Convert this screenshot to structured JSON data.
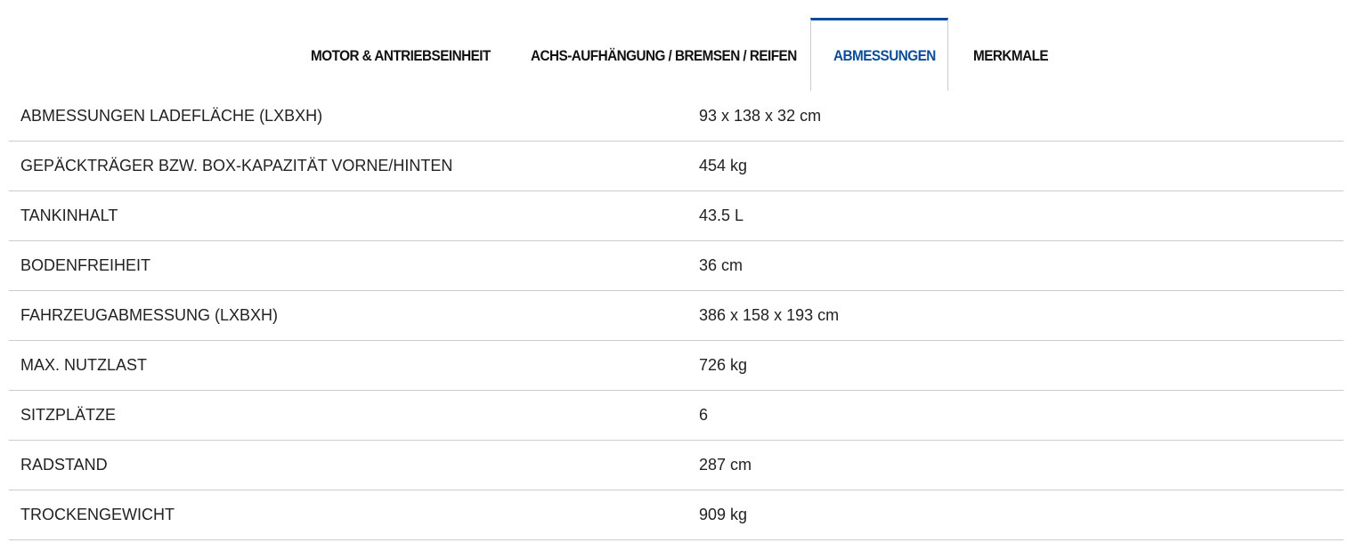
{
  "tabs": [
    {
      "label": "MOTOR & ANTRIEBSEINHEIT",
      "active": false
    },
    {
      "label": "ACHS-AUFHÄNGUNG / BREMSEN / REIFEN",
      "active": false
    },
    {
      "label": "ABMESSUNGEN",
      "active": true
    },
    {
      "label": "MERKMALE",
      "active": false
    }
  ],
  "accent_color": "#0b4c9a",
  "specs": [
    {
      "label": "ABMESSUNGEN LADEFLÄCHE (LXBXH)",
      "value": "93 x 138 x 32 cm"
    },
    {
      "label": "GEPÄCKTRÄGER BZW. BOX-KAPAZITÄT VORNE/HINTEN",
      "value": "454 kg"
    },
    {
      "label": "TANKINHALT",
      "value": "43.5 L"
    },
    {
      "label": "BODENFREIHEIT",
      "value": "36 cm"
    },
    {
      "label": "FAHRZEUGABMESSUNG (LXBXH)",
      "value": "386 x 158 x 193 cm"
    },
    {
      "label": "MAX. NUTZLAST",
      "value": "726 kg"
    },
    {
      "label": "SITZPLÄTZE",
      "value": "6"
    },
    {
      "label": "RADSTAND",
      "value": "287 cm"
    },
    {
      "label": "TROCKENGEWICHT",
      "value": "909 kg"
    }
  ]
}
